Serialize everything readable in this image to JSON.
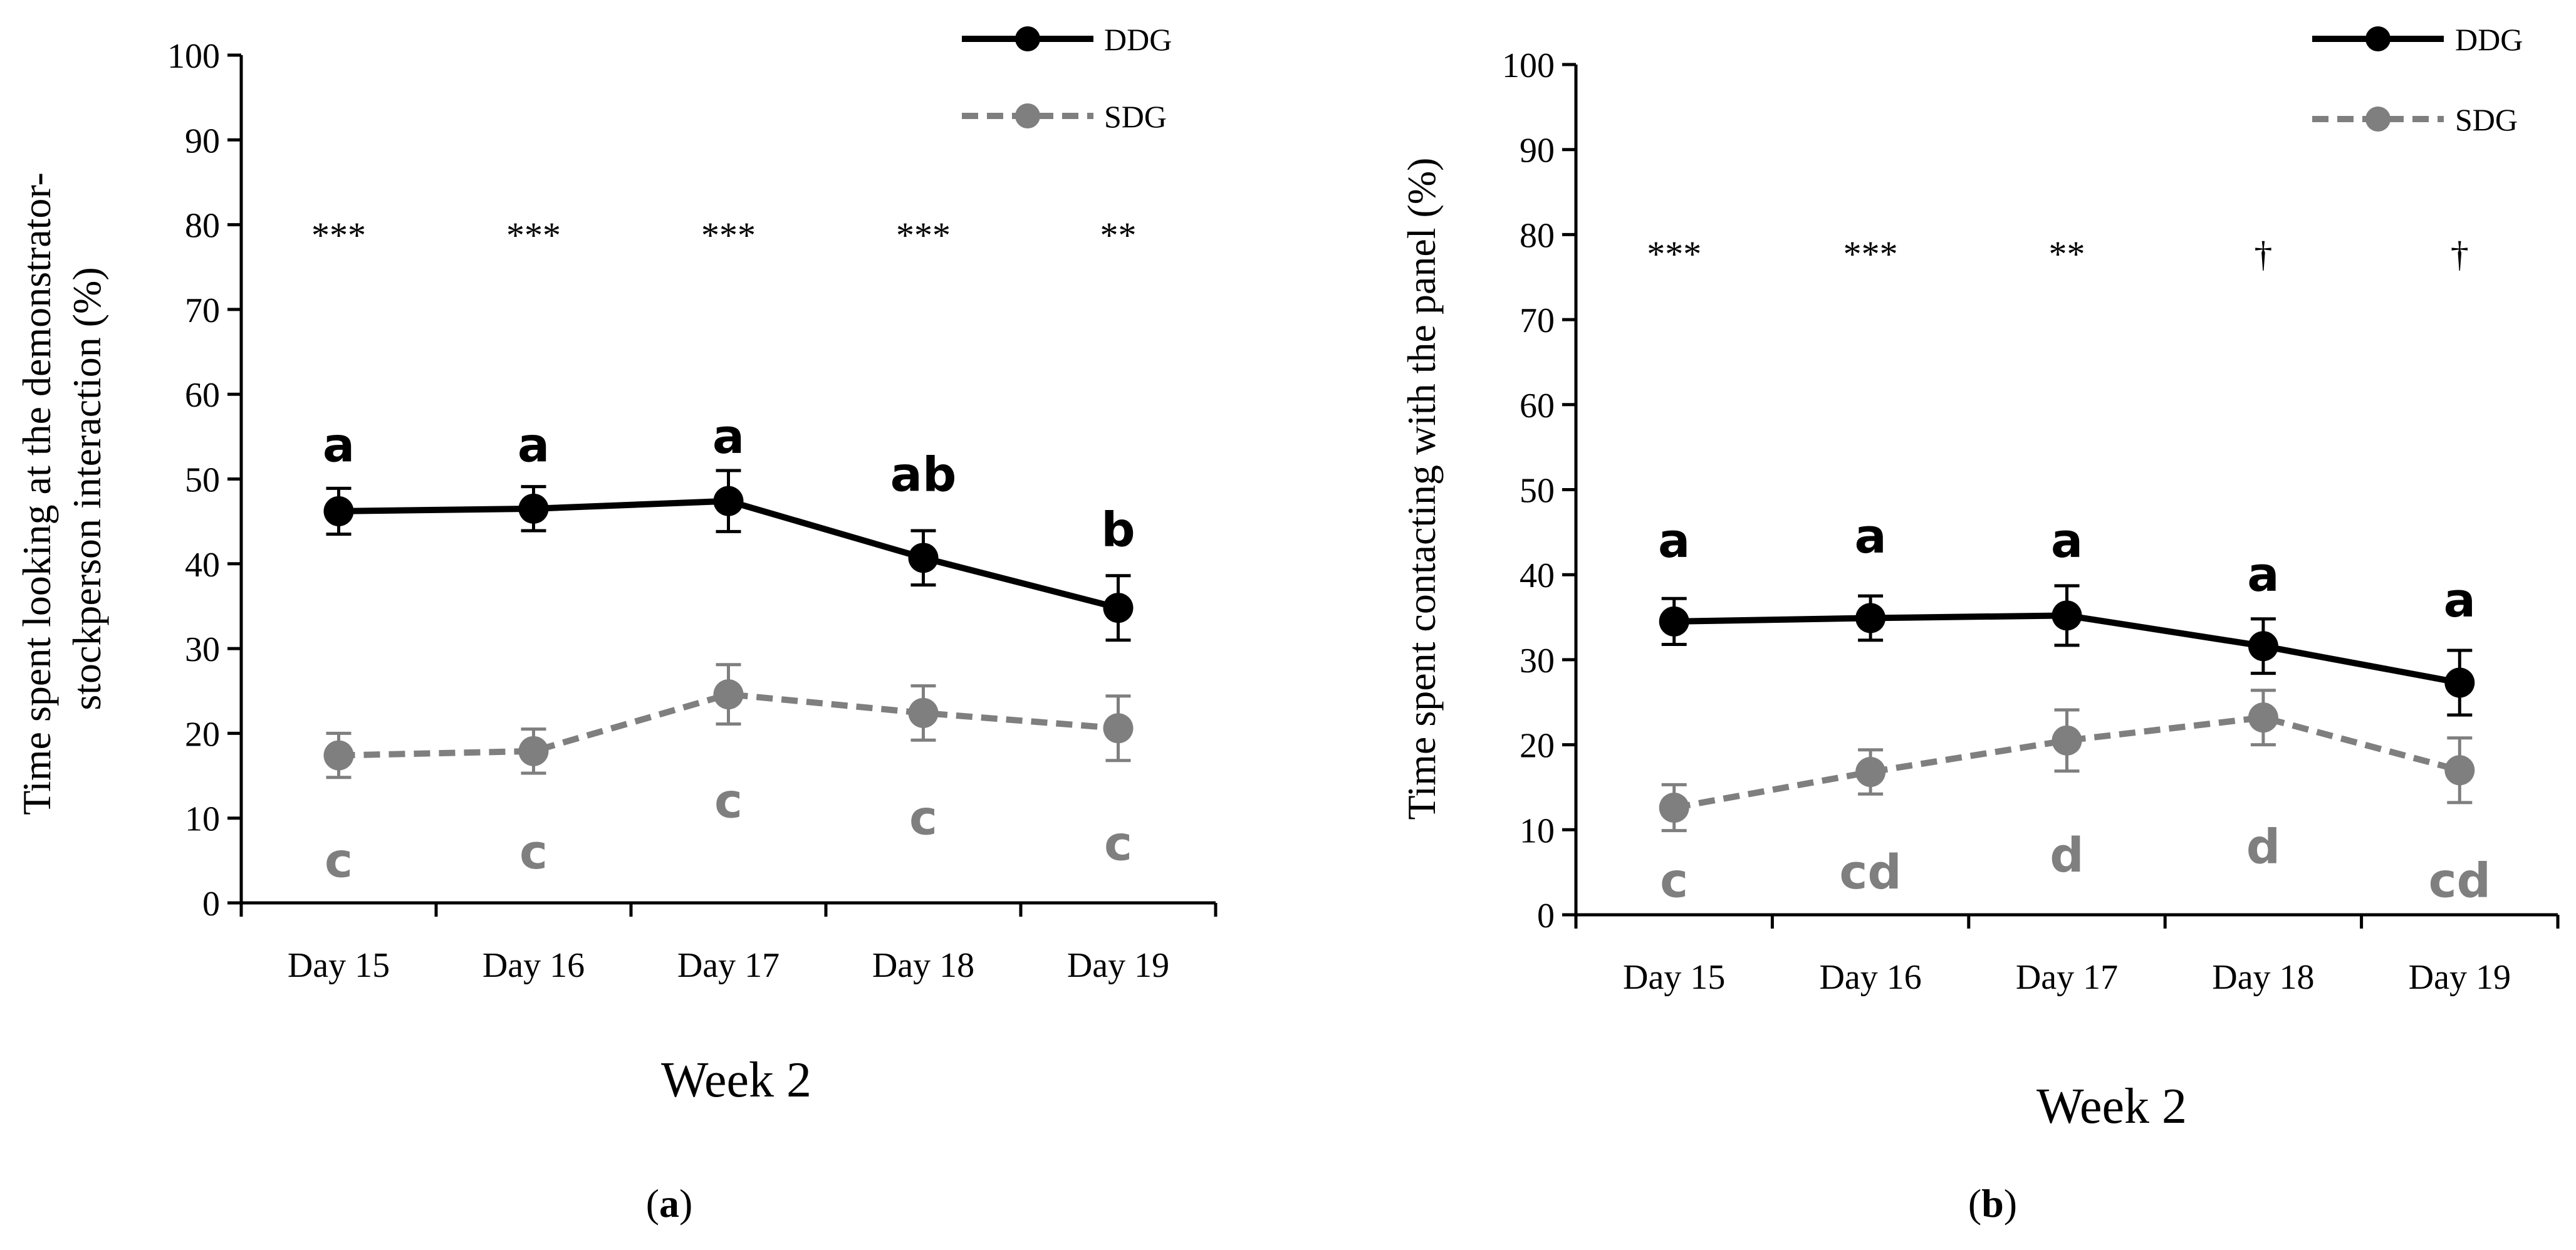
{
  "chart_data": [
    {
      "type": "line",
      "panel_label": "(a)",
      "panel_letter": "a",
      "ylabel": "Time spent looking at the demonstrator-stockperson interaction (%)",
      "ylabel_lines": [
        "Time spent looking at the demonstrator-",
        "stockperson interaction (%)"
      ],
      "xlabel": "Week 2",
      "categories": [
        "Day 15",
        "Day 16",
        "Day 17",
        "Day 18",
        "Day 19"
      ],
      "ylim": [
        0,
        100
      ],
      "yticks": [
        0,
        10,
        20,
        30,
        40,
        50,
        60,
        70,
        80,
        90,
        100
      ],
      "legend_position": "top-right",
      "series": [
        {
          "name": "DDG",
          "color": "#000000",
          "dashed": false,
          "values": [
            46.2,
            46.5,
            47.4,
            40.7,
            34.8
          ],
          "errors": [
            2.7,
            2.6,
            3.6,
            3.2,
            3.8
          ],
          "letters": [
            "a",
            "a",
            "a",
            "ab",
            "b"
          ],
          "letter_y": [
            54,
            54,
            55,
            50.5,
            44
          ]
        },
        {
          "name": "SDG",
          "color": "#7f7f7f",
          "dashed": true,
          "values": [
            17.4,
            17.9,
            24.6,
            22.4,
            20.6
          ],
          "errors": [
            2.6,
            2.6,
            3.5,
            3.2,
            3.8
          ],
          "letters": [
            "c",
            "c",
            "c",
            "c",
            "c"
          ],
          "letter_y": [
            5,
            6,
            12,
            10,
            7
          ]
        }
      ],
      "significance": [
        "***",
        "***",
        "***",
        "***",
        "**"
      ]
    },
    {
      "type": "line",
      "panel_label": "(b)",
      "panel_letter": "b",
      "ylabel": "Time spent contacting with the panel (%)",
      "ylabel_lines": [
        "Time spent contacting with the panel (%)"
      ],
      "xlabel": "Week 2",
      "categories": [
        "Day 15",
        "Day 16",
        "Day 17",
        "Day 18",
        "Day 19"
      ],
      "ylim": [
        0,
        100
      ],
      "yticks": [
        0,
        10,
        20,
        30,
        40,
        50,
        60,
        70,
        80,
        90,
        100
      ],
      "legend_position": "top-right",
      "series": [
        {
          "name": "DDG",
          "color": "#000000",
          "dashed": false,
          "values": [
            34.5,
            34.9,
            35.2,
            31.6,
            27.3
          ],
          "errors": [
            2.7,
            2.6,
            3.5,
            3.2,
            3.8
          ],
          "letters": [
            "a",
            "a",
            "a",
            "a",
            "a"
          ],
          "letter_y": [
            44,
            44.5,
            44,
            40,
            37
          ]
        },
        {
          "name": "SDG",
          "color": "#7f7f7f",
          "dashed": true,
          "values": [
            12.6,
            16.8,
            20.5,
            23.2,
            17.0
          ],
          "errors": [
            2.7,
            2.6,
            3.6,
            3.2,
            3.8
          ],
          "letters": [
            "c",
            "cd",
            "d",
            "d",
            "cd"
          ],
          "letter_y": [
            4,
            5,
            7,
            8,
            4
          ]
        }
      ],
      "significance": [
        "***",
        "***",
        "**",
        "†",
        "†"
      ]
    }
  ]
}
